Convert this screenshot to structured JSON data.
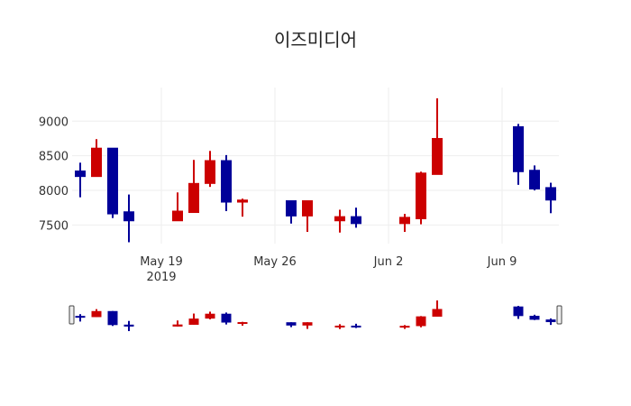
{
  "chart_data": {
    "type": "candlestick",
    "title": "이즈미디어",
    "xlabel": "",
    "ylabel": "",
    "ylim": [
      7200,
      9400
    ],
    "grid": true,
    "legend": null,
    "increasing_color": "#cc0000",
    "decreasing_color": "#000099",
    "y_ticks": [
      7500,
      8000,
      8500,
      9000
    ],
    "y_tick_labels": [
      "7500",
      "8000",
      "8500",
      "9000"
    ],
    "x_ticks": [
      {
        "date": "2019-05-19",
        "label": "May 19",
        "sublabel": "2019"
      },
      {
        "date": "2019-05-26",
        "label": "May 26",
        "sublabel": ""
      },
      {
        "date": "2019-06-02",
        "label": "Jun 2",
        "sublabel": ""
      },
      {
        "date": "2019-06-09",
        "label": "Jun 9",
        "sublabel": ""
      }
    ],
    "rangeslider": true,
    "candles": [
      {
        "date": "2019-05-14",
        "open": 8280,
        "high": 8400,
        "low": 7900,
        "close": 8200
      },
      {
        "date": "2019-05-15",
        "open": 8200,
        "high": 8740,
        "low": 8200,
        "close": 8610
      },
      {
        "date": "2019-05-16",
        "open": 8610,
        "high": 8610,
        "low": 7600,
        "close": 7660
      },
      {
        "date": "2019-05-17",
        "open": 7690,
        "high": 7940,
        "low": 7250,
        "close": 7560
      },
      {
        "date": "2019-05-20",
        "open": 7560,
        "high": 7970,
        "low": 7560,
        "close": 7700
      },
      {
        "date": "2019-05-21",
        "open": 7680,
        "high": 8440,
        "low": 7680,
        "close": 8100
      },
      {
        "date": "2019-05-22",
        "open": 8100,
        "high": 8570,
        "low": 8050,
        "close": 8430
      },
      {
        "date": "2019-05-23",
        "open": 8430,
        "high": 8510,
        "low": 7700,
        "close": 7830
      },
      {
        "date": "2019-05-24",
        "open": 7830,
        "high": 7880,
        "low": 7620,
        "close": 7860
      },
      {
        "date": "2019-05-27",
        "open": 7850,
        "high": 7850,
        "low": 7520,
        "close": 7630
      },
      {
        "date": "2019-05-28",
        "open": 7630,
        "high": 7850,
        "low": 7400,
        "close": 7850
      },
      {
        "date": "2019-05-30",
        "open": 7560,
        "high": 7720,
        "low": 7390,
        "close": 7620
      },
      {
        "date": "2019-05-31",
        "open": 7620,
        "high": 7750,
        "low": 7460,
        "close": 7520
      },
      {
        "date": "2019-06-03",
        "open": 7520,
        "high": 7660,
        "low": 7400,
        "close": 7610
      },
      {
        "date": "2019-06-04",
        "open": 7590,
        "high": 8270,
        "low": 7510,
        "close": 8250
      },
      {
        "date": "2019-06-05",
        "open": 8230,
        "high": 9330,
        "low": 8230,
        "close": 8750
      },
      {
        "date": "2019-06-10",
        "open": 8920,
        "high": 8960,
        "low": 8080,
        "close": 8270
      },
      {
        "date": "2019-06-11",
        "open": 8290,
        "high": 8360,
        "low": 8000,
        "close": 8020
      },
      {
        "date": "2019-06-12",
        "open": 8040,
        "high": 8110,
        "low": 7670,
        "close": 7860
      }
    ]
  }
}
